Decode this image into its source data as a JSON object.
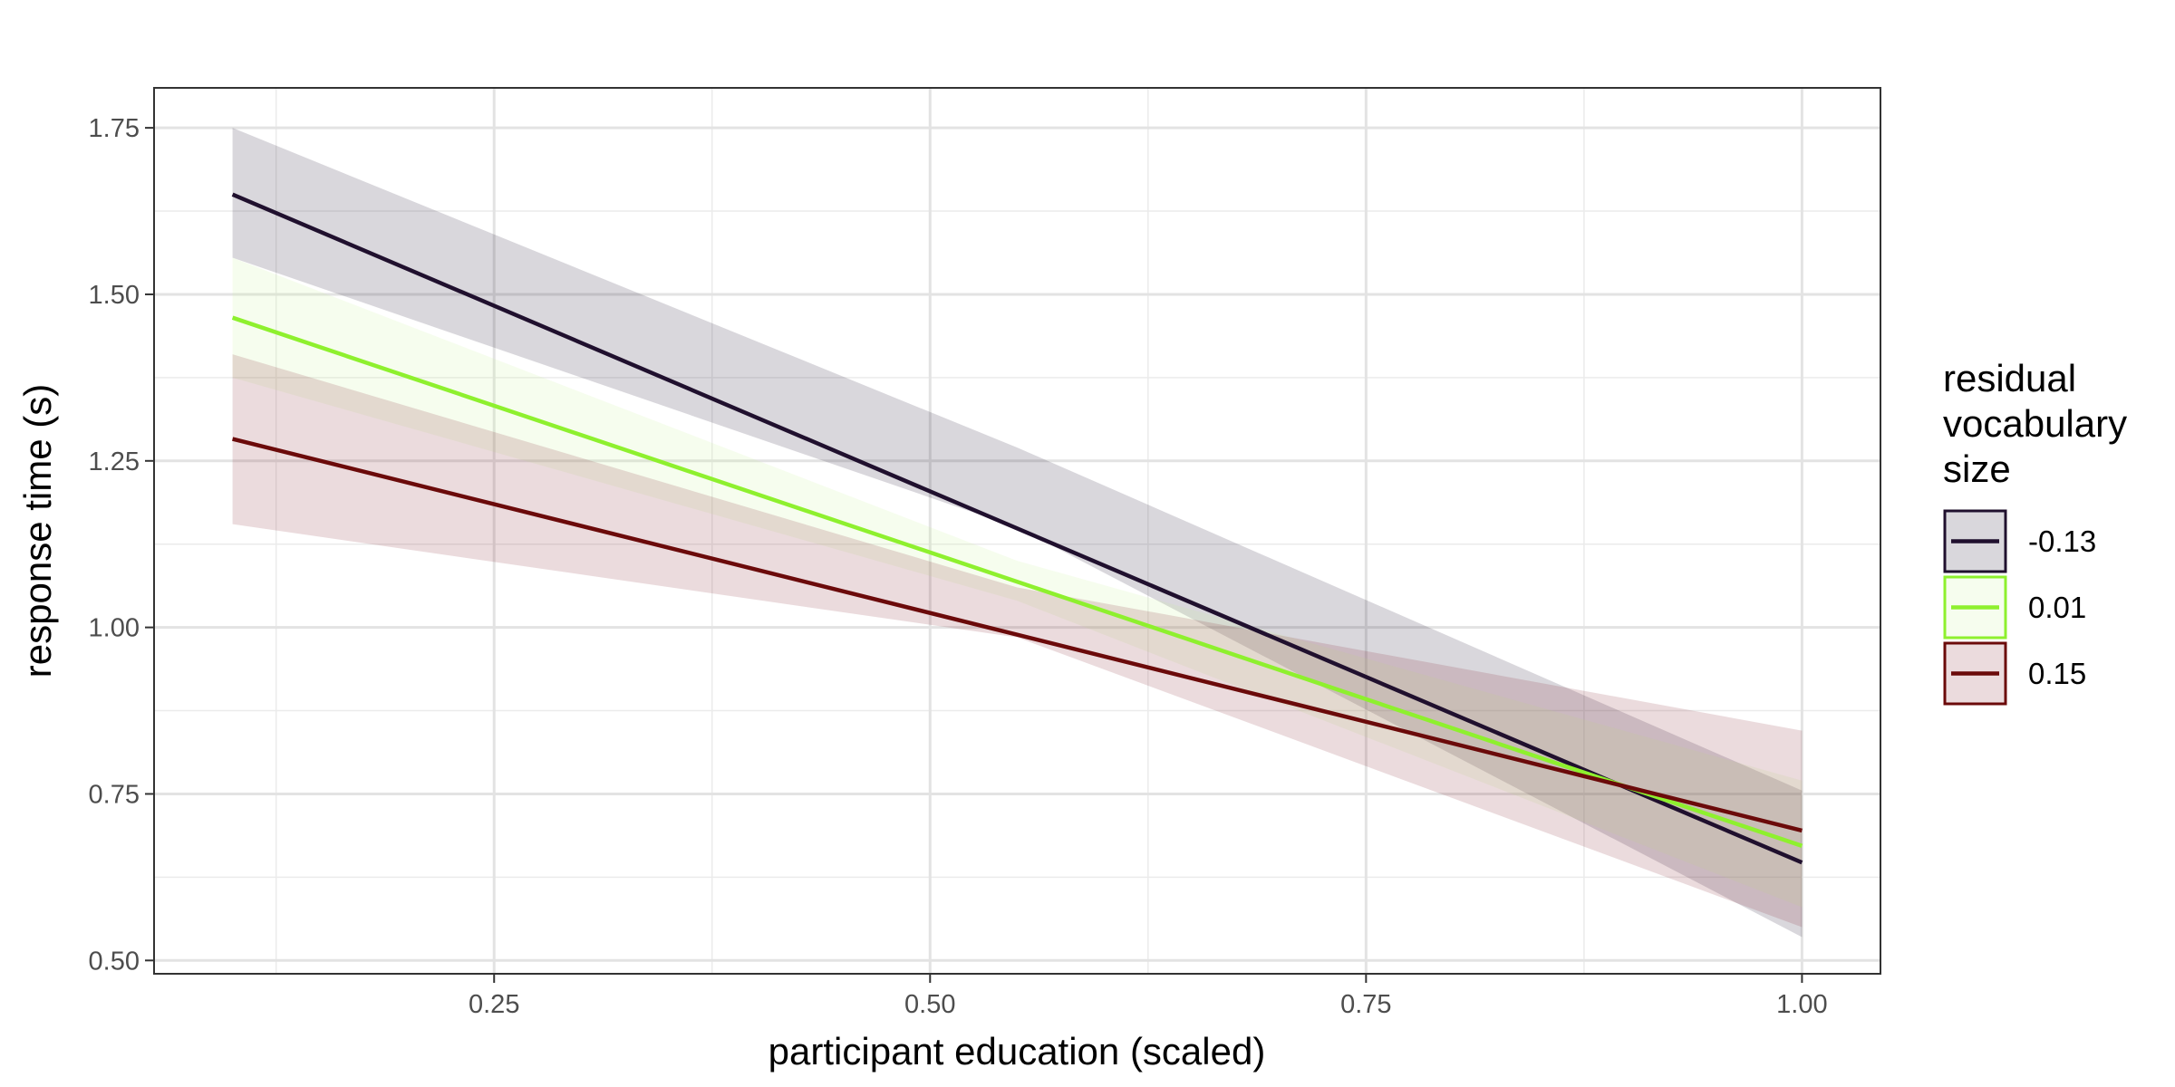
{
  "chart_data": {
    "type": "line",
    "xlabel": "participant education (scaled)",
    "ylabel": "response time (s)",
    "xlim": [
      0.055,
      1.045
    ],
    "ylim": [
      0.48,
      1.81
    ],
    "x_ticks": [
      0.25,
      0.5,
      0.75,
      1.0
    ],
    "x_tick_labels": [
      "0.25",
      "0.50",
      "0.75",
      "1.00"
    ],
    "y_ticks": [
      0.5,
      0.75,
      1.0,
      1.25,
      1.5,
      1.75
    ],
    "y_tick_labels": [
      "0.50",
      "0.75",
      "1.00",
      "1.25",
      "1.50",
      "1.75"
    ],
    "grid": true,
    "legend_title": [
      "residual",
      "vocabulary",
      "size"
    ],
    "legend_position": "right",
    "series": [
      {
        "name": "-0.13",
        "color": "#20102e",
        "fill": "#20102e",
        "x": [
          0.1,
          1.0
        ],
        "y": [
          1.65,
          0.647
        ],
        "lower": [
          1.555,
          0.535
        ],
        "upper": [
          1.75,
          0.755
        ],
        "band_x": [
          0.1,
          0.55,
          1.0
        ],
        "band_lower": [
          1.555,
          1.15,
          0.535
        ],
        "band_upper": [
          1.75,
          1.27,
          0.755
        ]
      },
      {
        "name": "0.01",
        "color": "#8ef02e",
        "fill": "#c8f59a",
        "x": [
          0.1,
          1.0
        ],
        "y": [
          1.465,
          0.672
        ],
        "band_x": [
          0.1,
          0.55,
          1.0
        ],
        "band_lower": [
          1.375,
          1.04,
          0.58
        ],
        "band_upper": [
          1.555,
          1.1,
          0.77
        ]
      },
      {
        "name": "0.15",
        "color": "#6b0a0a",
        "fill": "#8a2a35",
        "x": [
          0.1,
          1.0
        ],
        "y": [
          1.283,
          0.695
        ],
        "band_x": [
          0.1,
          0.55,
          1.0
        ],
        "band_lower": [
          1.155,
          0.985,
          0.55
        ],
        "band_upper": [
          1.41,
          1.06,
          0.845
        ]
      }
    ]
  }
}
